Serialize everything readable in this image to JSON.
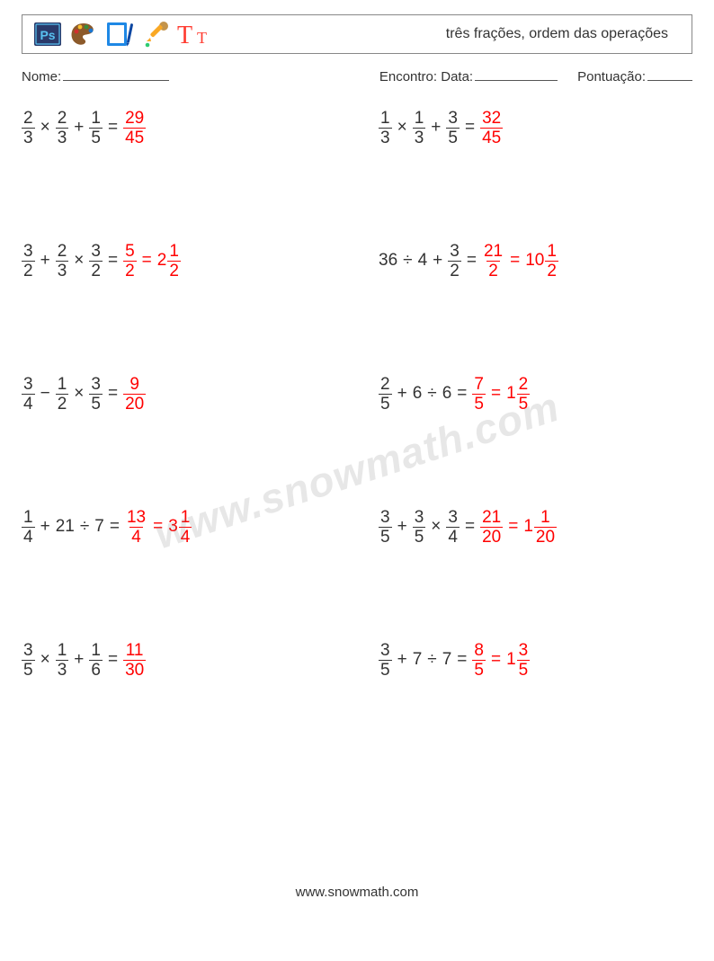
{
  "header": {
    "title": "três frações, ordem das operações"
  },
  "meta": {
    "name_label": "Nome:",
    "name_underline_width": 118,
    "encounter_label": "Encontro: Data:",
    "date_underline_width": 92,
    "score_label": "Pontuação:",
    "score_underline_width": 50
  },
  "colors": {
    "text": "#333333",
    "answer": "#ff0000",
    "border": "#888888",
    "watermark": "rgba(120,120,120,0.18)"
  },
  "typography": {
    "body_fontsize": 19,
    "header_fontsize": 16,
    "meta_fontsize": 15,
    "footer_fontsize": 15,
    "watermark_fontsize": 46
  },
  "watermark_text": "www.snowmath.com",
  "footer_text": "www.snowmath.com",
  "problems": [
    {
      "col": 1,
      "lhs": [
        {
          "type": "frac",
          "n": "2",
          "d": "3"
        },
        {
          "type": "op",
          "v": "×"
        },
        {
          "type": "frac",
          "n": "2",
          "d": "3"
        },
        {
          "type": "op",
          "v": "+"
        },
        {
          "type": "frac",
          "n": "1",
          "d": "5"
        }
      ],
      "ans": [
        {
          "type": "frac",
          "n": "29",
          "d": "45"
        }
      ]
    },
    {
      "col": 2,
      "lhs": [
        {
          "type": "frac",
          "n": "1",
          "d": "3"
        },
        {
          "type": "op",
          "v": "×"
        },
        {
          "type": "frac",
          "n": "1",
          "d": "3"
        },
        {
          "type": "op",
          "v": "+"
        },
        {
          "type": "frac",
          "n": "3",
          "d": "5"
        }
      ],
      "ans": [
        {
          "type": "frac",
          "n": "32",
          "d": "45"
        }
      ]
    },
    {
      "col": 1,
      "lhs": [
        {
          "type": "frac",
          "n": "3",
          "d": "2"
        },
        {
          "type": "op",
          "v": "+"
        },
        {
          "type": "frac",
          "n": "2",
          "d": "3"
        },
        {
          "type": "op",
          "v": "×"
        },
        {
          "type": "frac",
          "n": "3",
          "d": "2"
        }
      ],
      "ans": [
        {
          "type": "frac",
          "n": "5",
          "d": "2"
        },
        {
          "type": "eq"
        },
        {
          "type": "mixed",
          "w": "2",
          "n": "1",
          "d": "2"
        }
      ]
    },
    {
      "col": 2,
      "lhs": [
        {
          "type": "int",
          "v": "36"
        },
        {
          "type": "op",
          "v": "÷"
        },
        {
          "type": "int",
          "v": "4"
        },
        {
          "type": "op",
          "v": "+"
        },
        {
          "type": "frac",
          "n": "3",
          "d": "2"
        }
      ],
      "ans": [
        {
          "type": "frac",
          "n": "21",
          "d": "2"
        },
        {
          "type": "eq"
        },
        {
          "type": "mixed",
          "w": "10",
          "n": "1",
          "d": "2"
        }
      ]
    },
    {
      "col": 1,
      "lhs": [
        {
          "type": "frac",
          "n": "3",
          "d": "4"
        },
        {
          "type": "op",
          "v": "−"
        },
        {
          "type": "frac",
          "n": "1",
          "d": "2"
        },
        {
          "type": "op",
          "v": "×"
        },
        {
          "type": "frac",
          "n": "3",
          "d": "5"
        }
      ],
      "ans": [
        {
          "type": "frac",
          "n": "9",
          "d": "20"
        }
      ]
    },
    {
      "col": 2,
      "lhs": [
        {
          "type": "frac",
          "n": "2",
          "d": "5"
        },
        {
          "type": "op",
          "v": "+"
        },
        {
          "type": "int",
          "v": "6"
        },
        {
          "type": "op",
          "v": "÷"
        },
        {
          "type": "int",
          "v": "6"
        }
      ],
      "ans": [
        {
          "type": "frac",
          "n": "7",
          "d": "5"
        },
        {
          "type": "eq"
        },
        {
          "type": "mixed",
          "w": "1",
          "n": "2",
          "d": "5"
        }
      ]
    },
    {
      "col": 1,
      "lhs": [
        {
          "type": "frac",
          "n": "1",
          "d": "4"
        },
        {
          "type": "op",
          "v": "+"
        },
        {
          "type": "int",
          "v": "21"
        },
        {
          "type": "op",
          "v": "÷"
        },
        {
          "type": "int",
          "v": "7"
        }
      ],
      "ans": [
        {
          "type": "frac",
          "n": "13",
          "d": "4"
        },
        {
          "type": "eq"
        },
        {
          "type": "mixed",
          "w": "3",
          "n": "1",
          "d": "4"
        }
      ]
    },
    {
      "col": 2,
      "lhs": [
        {
          "type": "frac",
          "n": "3",
          "d": "5"
        },
        {
          "type": "op",
          "v": "+"
        },
        {
          "type": "frac",
          "n": "3",
          "d": "5"
        },
        {
          "type": "op",
          "v": "×"
        },
        {
          "type": "frac",
          "n": "3",
          "d": "4"
        }
      ],
      "ans": [
        {
          "type": "frac",
          "n": "21",
          "d": "20"
        },
        {
          "type": "eq"
        },
        {
          "type": "mixed",
          "w": "1",
          "n": "1",
          "d": "20"
        }
      ]
    },
    {
      "col": 1,
      "lhs": [
        {
          "type": "frac",
          "n": "3",
          "d": "5"
        },
        {
          "type": "op",
          "v": "×"
        },
        {
          "type": "frac",
          "n": "1",
          "d": "3"
        },
        {
          "type": "op",
          "v": "+"
        },
        {
          "type": "frac",
          "n": "1",
          "d": "6"
        }
      ],
      "ans": [
        {
          "type": "frac",
          "n": "11",
          "d": "30"
        }
      ]
    },
    {
      "col": 2,
      "lhs": [
        {
          "type": "frac",
          "n": "3",
          "d": "5"
        },
        {
          "type": "op",
          "v": "+"
        },
        {
          "type": "int",
          "v": "7"
        },
        {
          "type": "op",
          "v": "÷"
        },
        {
          "type": "int",
          "v": "7"
        }
      ],
      "ans": [
        {
          "type": "frac",
          "n": "8",
          "d": "5"
        },
        {
          "type": "eq"
        },
        {
          "type": "mixed",
          "w": "1",
          "n": "3",
          "d": "5"
        }
      ]
    }
  ],
  "icons": {
    "ps": {
      "bg": "#2a3a6a",
      "fg": "#58c1f0",
      "label": "Ps"
    },
    "palette": {
      "body": "#8c5a2b",
      "dots": [
        "#d32f2f",
        "#fbc02d",
        "#388e3c",
        "#1976d2"
      ]
    },
    "tablet": {
      "frame": "#1e88e5",
      "pen": "#0d47a1"
    },
    "dropper": {
      "body": "#f9a825",
      "bulb": "#c4944a",
      "drop": "#2ecc71"
    },
    "text": {
      "color": "#ff3b30"
    }
  }
}
